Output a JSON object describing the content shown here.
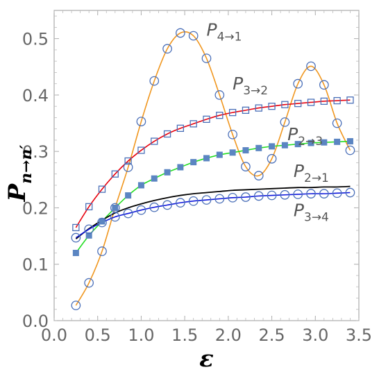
{
  "chart_data": {
    "type": "scatter",
    "xlabel": "ε",
    "ylabel": "P_{n→n′}",
    "xlim": [
      0.0,
      3.5
    ],
    "ylim": [
      0.0,
      0.55
    ],
    "xticks": [
      "0.0",
      "0.5",
      "1.0",
      "1.5",
      "2.0",
      "2.5",
      "3.0",
      "3.5"
    ],
    "yticks": [
      "0.0",
      "0.1",
      "0.2",
      "0.3",
      "0.4",
      "0.5"
    ],
    "xtick_values": [
      0.0,
      0.5,
      1.0,
      1.5,
      2.0,
      2.5,
      3.0,
      3.5
    ],
    "ytick_values": [
      0.0,
      0.1,
      0.2,
      0.3,
      0.4,
      0.5
    ],
    "grid": false,
    "series": [
      {
        "name": "P4→1",
        "label_main": "P",
        "label_sub": "4→1",
        "label_at": [
          1.75,
          0.505
        ],
        "line_color": "#f0961e",
        "marker": "open-circle",
        "marker_color": "#4a6fb8",
        "x": [
          0.25,
          0.4,
          0.55,
          0.7,
          0.85,
          1.0,
          1.15,
          1.3,
          1.45,
          1.6,
          1.75,
          1.9,
          2.05,
          2.2,
          2.35,
          2.5,
          2.65,
          2.8,
          2.95,
          3.1,
          3.25,
          3.4
        ],
        "y": [
          0.027,
          0.067,
          0.123,
          0.2,
          0.272,
          0.353,
          0.425,
          0.482,
          0.51,
          0.505,
          0.465,
          0.4,
          0.33,
          0.273,
          0.257,
          0.287,
          0.352,
          0.42,
          0.451,
          0.418,
          0.35,
          0.302
        ]
      },
      {
        "name": "P3→2",
        "label_main": "P",
        "label_sub": "3→2",
        "label_at": [
          2.05,
          0.41
        ],
        "line_color": "#e8000d",
        "marker": "open-square",
        "marker_color": "#4a6fb8",
        "x": [
          0.25,
          0.4,
          0.55,
          0.7,
          0.85,
          1.0,
          1.15,
          1.3,
          1.45,
          1.6,
          1.75,
          1.9,
          2.05,
          2.2,
          2.35,
          2.5,
          2.65,
          2.8,
          2.95,
          3.1,
          3.25,
          3.4
        ],
        "y": [
          0.165,
          0.202,
          0.233,
          0.26,
          0.283,
          0.302,
          0.318,
          0.331,
          0.341,
          0.349,
          0.357,
          0.364,
          0.369,
          0.373,
          0.377,
          0.38,
          0.383,
          0.385,
          0.387,
          0.389,
          0.39,
          0.391
        ]
      },
      {
        "name": "P2→3",
        "label_main": "P",
        "label_sub": "2→3",
        "label_at": [
          2.68,
          0.32
        ],
        "line_color": "#22dd22",
        "marker": "filled-square",
        "marker_color": "#5b85c2",
        "x": [
          0.25,
          0.4,
          0.55,
          0.7,
          0.85,
          1.0,
          1.15,
          1.3,
          1.45,
          1.6,
          1.75,
          1.9,
          2.05,
          2.2,
          2.35,
          2.5,
          2.65,
          2.8,
          2.95,
          3.1,
          3.25,
          3.4
        ],
        "y": [
          0.12,
          0.151,
          0.176,
          0.2,
          0.222,
          0.24,
          0.252,
          0.263,
          0.272,
          0.281,
          0.288,
          0.294,
          0.298,
          0.302,
          0.306,
          0.309,
          0.311,
          0.313,
          0.315,
          0.316,
          0.317,
          0.318
        ]
      },
      {
        "name": "P2→1",
        "label_main": "P",
        "label_sub": "2→1",
        "label_at": [
          2.75,
          0.255
        ],
        "line_color": "#000000",
        "marker": "none",
        "marker_color": "#000000",
        "x": [
          0.25,
          0.4,
          0.55,
          0.7,
          0.85,
          1.0,
          1.15,
          1.3,
          1.45,
          1.6,
          1.75,
          1.9,
          2.05,
          2.2,
          2.35,
          2.5,
          2.65,
          2.8,
          2.95,
          3.1,
          3.25,
          3.4
        ],
        "y": [
          0.145,
          0.163,
          0.178,
          0.191,
          0.2,
          0.207,
          0.213,
          0.218,
          0.222,
          0.225,
          0.227,
          0.229,
          0.231,
          0.232,
          0.233,
          0.234,
          0.235,
          0.236,
          0.236,
          0.237,
          0.237,
          0.238
        ]
      },
      {
        "name": "P3→4",
        "label_main": "P",
        "label_sub": "3→4",
        "label_at": [
          2.75,
          0.185
        ],
        "line_color": "#0a14dc",
        "marker": "open-circle",
        "marker_color": "#4a6fb8",
        "x": [
          0.25,
          0.4,
          0.55,
          0.7,
          0.85,
          1.0,
          1.15,
          1.3,
          1.45,
          1.6,
          1.75,
          1.9,
          2.05,
          2.2,
          2.35,
          2.5,
          2.65,
          2.8,
          2.95,
          3.1,
          3.25,
          3.4
        ],
        "y": [
          0.147,
          0.162,
          0.174,
          0.184,
          0.19,
          0.196,
          0.201,
          0.205,
          0.209,
          0.212,
          0.214,
          0.216,
          0.218,
          0.219,
          0.221,
          0.222,
          0.223,
          0.224,
          0.225,
          0.225,
          0.226,
          0.227
        ]
      }
    ]
  }
}
